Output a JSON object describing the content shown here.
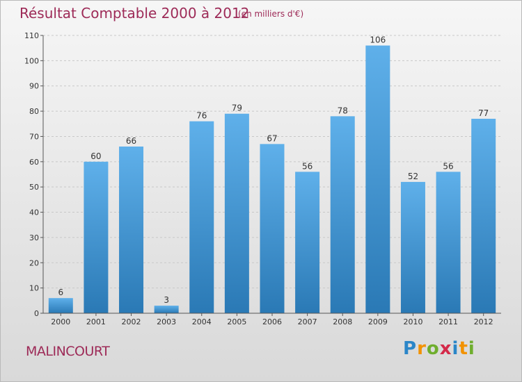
{
  "header": {
    "title": "Résultat Comptable 2000 à 2012",
    "subtitle": "(en milliers d'€)"
  },
  "footer": {
    "location": "MALINCOURT",
    "brand": "Proxiti",
    "brand_letters": [
      {
        "char": "P",
        "color": "#2b86c8"
      },
      {
        "char": "r",
        "color": "#f29200"
      },
      {
        "char": "o",
        "color": "#6fae2e"
      },
      {
        "char": "x",
        "color": "#d42a4a"
      },
      {
        "char": "i",
        "color": "#2b86c8"
      },
      {
        "char": "t",
        "color": "#f29200"
      },
      {
        "char": "i",
        "color": "#6fae2e"
      }
    ]
  },
  "colors": {
    "bar_top": "#5fb0ea",
    "bar_bottom": "#2a79b5",
    "text": "#9d2a57",
    "axis": "#333333"
  },
  "chart_data": {
    "type": "bar",
    "title": "Résultat Comptable 2000 à 2012",
    "subtitle": "(en milliers d'€)",
    "xlabel": "",
    "ylabel": "",
    "categories": [
      "2000",
      "2001",
      "2002",
      "2003",
      "2004",
      "2005",
      "2006",
      "2007",
      "2008",
      "2009",
      "2010",
      "2011",
      "2012"
    ],
    "values": [
      6,
      60,
      66,
      3,
      76,
      79,
      67,
      56,
      78,
      106,
      52,
      56,
      77
    ],
    "ylim": [
      0,
      110
    ],
    "yticks": [
      0,
      10,
      20,
      30,
      40,
      50,
      60,
      70,
      80,
      90,
      100,
      110
    ],
    "grid": true,
    "legend": "none"
  }
}
